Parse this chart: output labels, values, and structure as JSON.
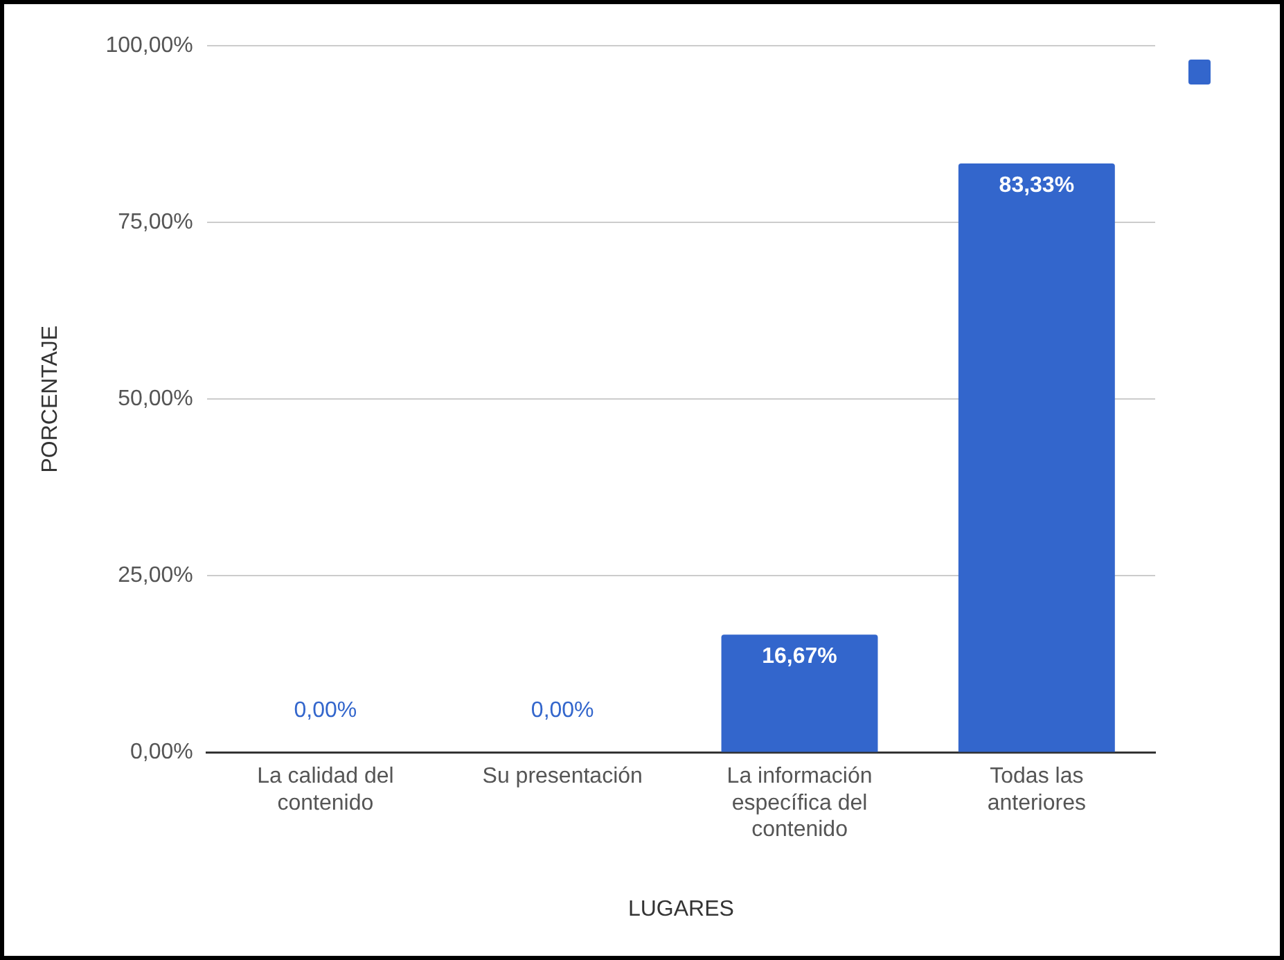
{
  "chart_data": {
    "type": "bar",
    "xlabel": "LUGARES",
    "ylabel": "PORCENTAJE",
    "categories": [
      "La calidad del contenido",
      "Su presentación",
      "La información específica del contenido",
      "Todas las anteriores"
    ],
    "series": [
      {
        "color": "#3366cc",
        "values": [
          0,
          0,
          16.67,
          83.33
        ],
        "value_labels": [
          "0,00%",
          "0,00%",
          "16,67%",
          "83,33%"
        ]
      }
    ],
    "ylim": [
      0,
      100
    ],
    "yticks": [
      {
        "value": 0,
        "label": "0,00%"
      },
      {
        "value": 25,
        "label": "25,00%"
      },
      {
        "value": 50,
        "label": "50,00%"
      },
      {
        "value": 75,
        "label": "75,00%"
      },
      {
        "value": 100,
        "label": "100,00%"
      }
    ],
    "grid": "y"
  }
}
